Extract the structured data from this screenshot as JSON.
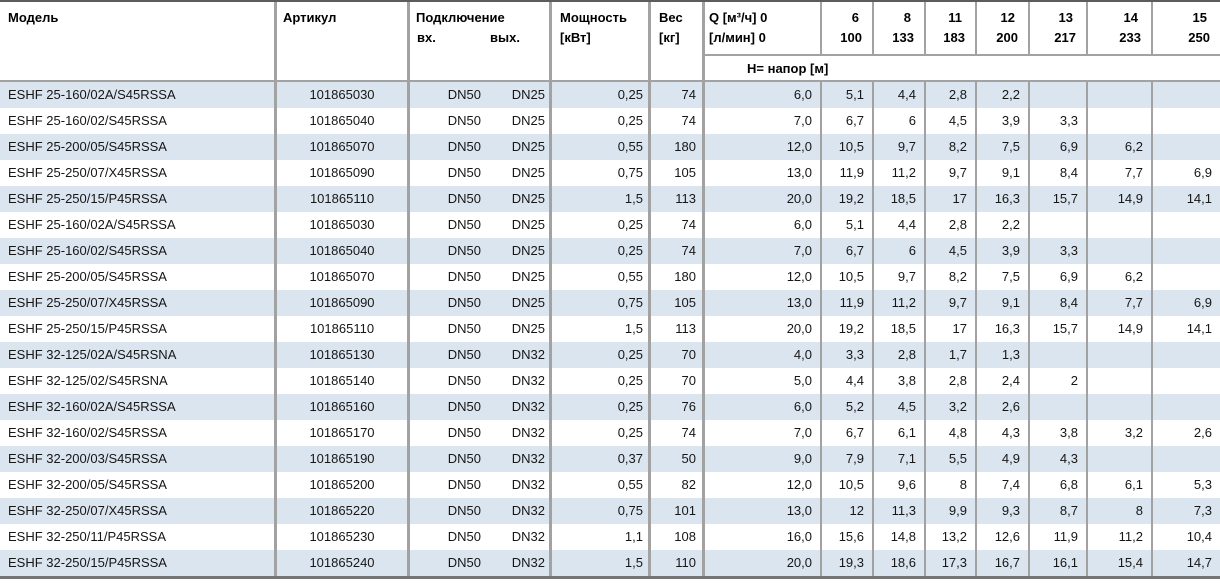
{
  "table": {
    "headers": {
      "model": "Модель",
      "article": "Артикул",
      "connection": "Подключение",
      "conn_in": "вх.",
      "conn_out": "вых.",
      "power_line1": "Мощность",
      "power_line2": "[кВт]",
      "weight_line1": "Вес",
      "weight_line2": "[кг]",
      "flow_line1": "Q [м³/ч] 0",
      "flow_line2": "[л/мин] 0",
      "head_label": "H= напор [м]",
      "q_cols": [
        {
          "m3h": "6",
          "lmin": "100"
        },
        {
          "m3h": "8",
          "lmin": "133"
        },
        {
          "m3h": "11",
          "lmin": "183"
        },
        {
          "m3h": "12",
          "lmin": "200"
        },
        {
          "m3h": "13",
          "lmin": "217"
        },
        {
          "m3h": "14",
          "lmin": "233"
        },
        {
          "m3h": "15",
          "lmin": "250"
        }
      ]
    },
    "colors": {
      "row_alt": "#dbe5f0",
      "separator": "#a2a2a2",
      "border_top": "#5c5c5c",
      "border_bottom": "#747474"
    },
    "rows": [
      {
        "model": "ESHF 25-160/02A/S45RSSA",
        "article": "101865030",
        "in": "DN50",
        "out": "DN25",
        "power": "0,25",
        "weight": "74",
        "heads": [
          "6,0",
          "5,1",
          "4,4",
          "2,8",
          "2,2",
          "",
          "",
          ""
        ]
      },
      {
        "model": "ESHF 25-160/02/S45RSSA",
        "article": "101865040",
        "in": "DN50",
        "out": "DN25",
        "power": "0,25",
        "weight": "74",
        "heads": [
          "7,0",
          "6,7",
          "6",
          "4,5",
          "3,9",
          "3,3",
          "",
          ""
        ]
      },
      {
        "model": "ESHF 25-200/05/S45RSSA",
        "article": "101865070",
        "in": "DN50",
        "out": "DN25",
        "power": "0,55",
        "weight": "180",
        "heads": [
          "12,0",
          "10,5",
          "9,7",
          "8,2",
          "7,5",
          "6,9",
          "6,2",
          ""
        ]
      },
      {
        "model": "ESHF 25-250/07/X45RSSA",
        "article": "101865090",
        "in": "DN50",
        "out": "DN25",
        "power": "0,75",
        "weight": "105",
        "heads": [
          "13,0",
          "11,9",
          "11,2",
          "9,7",
          "9,1",
          "8,4",
          "7,7",
          "6,9"
        ]
      },
      {
        "model": "ESHF 25-250/15/P45RSSA",
        "article": "101865110",
        "in": "DN50",
        "out": "DN25",
        "power": "1,5",
        "weight": "113",
        "heads": [
          "20,0",
          "19,2",
          "18,5",
          "17",
          "16,3",
          "15,7",
          "14,9",
          "14,1"
        ]
      },
      {
        "model": "ESHF 25-160/02A/S45RSSA",
        "article": "101865030",
        "in": "DN50",
        "out": "DN25",
        "power": "0,25",
        "weight": "74",
        "heads": [
          "6,0",
          "5,1",
          "4,4",
          "2,8",
          "2,2",
          "",
          "",
          ""
        ]
      },
      {
        "model": "ESHF 25-160/02/S45RSSA",
        "article": "101865040",
        "in": "DN50",
        "out": "DN25",
        "power": "0,25",
        "weight": "74",
        "heads": [
          "7,0",
          "6,7",
          "6",
          "4,5",
          "3,9",
          "3,3",
          "",
          ""
        ]
      },
      {
        "model": "ESHF 25-200/05/S45RSSA",
        "article": "101865070",
        "in": "DN50",
        "out": "DN25",
        "power": "0,55",
        "weight": "180",
        "heads": [
          "12,0",
          "10,5",
          "9,7",
          "8,2",
          "7,5",
          "6,9",
          "6,2",
          ""
        ]
      },
      {
        "model": "ESHF 25-250/07/X45RSSA",
        "article": "101865090",
        "in": "DN50",
        "out": "DN25",
        "power": "0,75",
        "weight": "105",
        "heads": [
          "13,0",
          "11,9",
          "11,2",
          "9,7",
          "9,1",
          "8,4",
          "7,7",
          "6,9"
        ]
      },
      {
        "model": "ESHF 25-250/15/P45RSSA",
        "article": "101865110",
        "in": "DN50",
        "out": "DN25",
        "power": "1,5",
        "weight": "113",
        "heads": [
          "20,0",
          "19,2",
          "18,5",
          "17",
          "16,3",
          "15,7",
          "14,9",
          "14,1"
        ]
      },
      {
        "model": "ESHF 32-125/02A/S45RSNA",
        "article": "101865130",
        "in": "DN50",
        "out": "DN32",
        "power": "0,25",
        "weight": "70",
        "heads": [
          "4,0",
          "3,3",
          "2,8",
          "1,7",
          "1,3",
          "",
          "",
          ""
        ]
      },
      {
        "model": "ESHF 32-125/02/S45RSNA",
        "article": "101865140",
        "in": "DN50",
        "out": "DN32",
        "power": "0,25",
        "weight": "70",
        "heads": [
          "5,0",
          "4,4",
          "3,8",
          "2,8",
          "2,4",
          "2",
          "",
          ""
        ]
      },
      {
        "model": "ESHF 32-160/02A/S45RSSA",
        "article": "101865160",
        "in": "DN50",
        "out": "DN32",
        "power": "0,25",
        "weight": "76",
        "heads": [
          "6,0",
          "5,2",
          "4,5",
          "3,2",
          "2,6",
          "",
          "",
          ""
        ]
      },
      {
        "model": "ESHF 32-160/02/S45RSSA",
        "article": "101865170",
        "in": "DN50",
        "out": "DN32",
        "power": "0,25",
        "weight": "74",
        "heads": [
          "7,0",
          "6,7",
          "6,1",
          "4,8",
          "4,3",
          "3,8",
          "3,2",
          "2,6"
        ]
      },
      {
        "model": "ESHF 32-200/03/S45RSSA",
        "article": "101865190",
        "in": "DN50",
        "out": "DN32",
        "power": "0,37",
        "weight": "50",
        "heads": [
          "9,0",
          "7,9",
          "7,1",
          "5,5",
          "4,9",
          "4,3",
          "",
          ""
        ]
      },
      {
        "model": "ESHF 32-200/05/S45RSSA",
        "article": "101865200",
        "in": "DN50",
        "out": "DN32",
        "power": "0,55",
        "weight": "82",
        "heads": [
          "12,0",
          "10,5",
          "9,6",
          "8",
          "7,4",
          "6,8",
          "6,1",
          "5,3"
        ]
      },
      {
        "model": "ESHF 32-250/07/X45RSSA",
        "article": "101865220",
        "in": "DN50",
        "out": "DN32",
        "power": "0,75",
        "weight": "101",
        "heads": [
          "13,0",
          "12",
          "11,3",
          "9,9",
          "9,3",
          "8,7",
          "8",
          "7,3"
        ]
      },
      {
        "model": "ESHF 32-250/11/P45RSSA",
        "article": "101865230",
        "in": "DN50",
        "out": "DN32",
        "power": "1,1",
        "weight": "108",
        "heads": [
          "16,0",
          "15,6",
          "14,8",
          "13,2",
          "12,6",
          "11,9",
          "11,2",
          "10,4"
        ]
      },
      {
        "model": "ESHF 32-250/15/P45RSSA",
        "article": "101865240",
        "in": "DN50",
        "out": "DN32",
        "power": "1,5",
        "weight": "110",
        "heads": [
          "20,0",
          "19,3",
          "18,6",
          "17,3",
          "16,7",
          "16,1",
          "15,4",
          "14,7"
        ]
      }
    ]
  }
}
